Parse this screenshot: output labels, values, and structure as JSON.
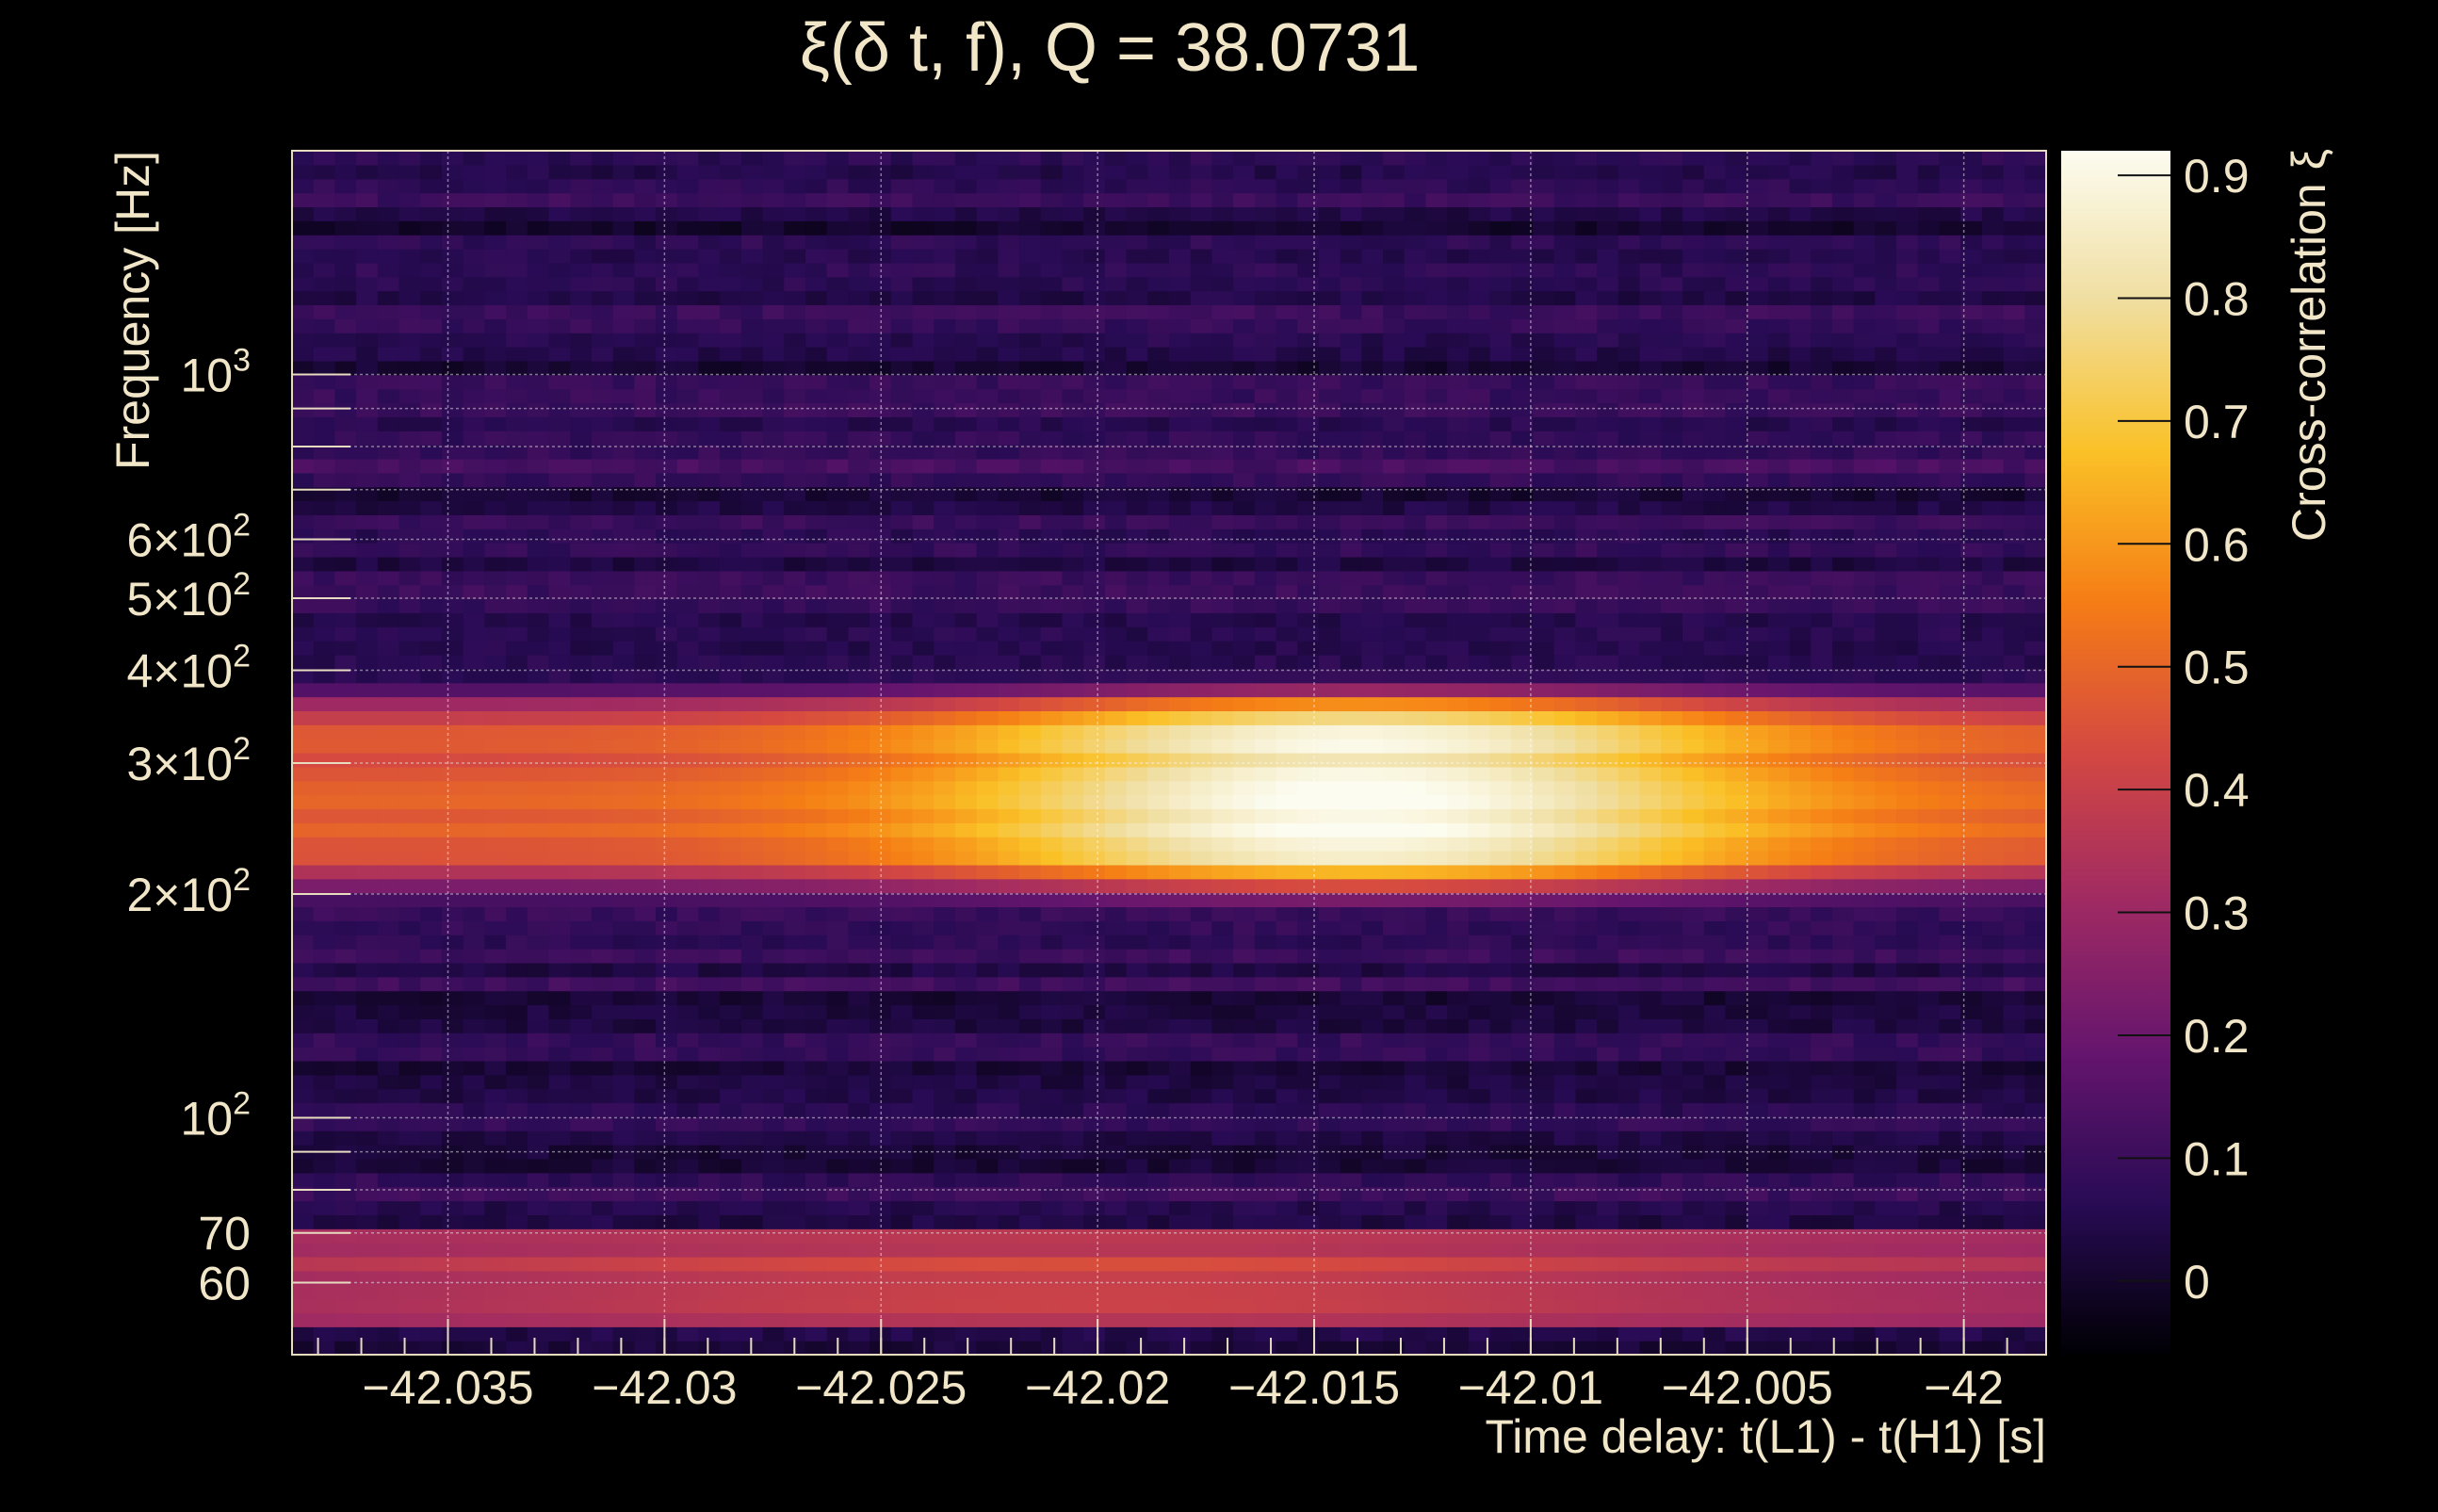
{
  "chart_data": {
    "type": "heatmap",
    "title": "ξ(δ t, f), Q = 38.0731",
    "xlabel": "Time delay: t(L1) - t(H1) [s]",
    "ylabel": "Frequency [Hz]",
    "colorbar_label": "Cross-correlation ξ",
    "y_scale": "log",
    "xlim": [
      -42.0386,
      -41.9981
    ],
    "ylim": [
      48,
      2000
    ],
    "x_ticks": [
      {
        "value": -42.035,
        "label": "−42.035"
      },
      {
        "value": -42.03,
        "label": "−42.03"
      },
      {
        "value": -42.025,
        "label": "−42.025"
      },
      {
        "value": -42.02,
        "label": "−42.02"
      },
      {
        "value": -42.015,
        "label": "−42.015"
      },
      {
        "value": -42.01,
        "label": "−42.01"
      },
      {
        "value": -42.005,
        "label": "−42.005"
      },
      {
        "value": -42.0,
        "label": "−42"
      }
    ],
    "y_ticks": [
      {
        "value": 60,
        "mantissa": "60",
        "exponent": ""
      },
      {
        "value": 70,
        "mantissa": "70",
        "exponent": ""
      },
      {
        "value": 100,
        "mantissa": "10",
        "exponent": "2"
      },
      {
        "value": 200,
        "mantissa": "2×10",
        "exponent": "2"
      },
      {
        "value": 300,
        "mantissa": "3×10",
        "exponent": "2"
      },
      {
        "value": 400,
        "mantissa": "4×10",
        "exponent": "2"
      },
      {
        "value": 500,
        "mantissa": "5×10",
        "exponent": "2"
      },
      {
        "value": 600,
        "mantissa": "6×10",
        "exponent": "2"
      },
      {
        "value": 1000,
        "mantissa": "10",
        "exponent": "3"
      }
    ],
    "y_gridlines": [
      60,
      70,
      80,
      90,
      100,
      200,
      300,
      400,
      500,
      600,
      700,
      800,
      900,
      1000
    ],
    "colorbar_range": [
      -0.06,
      0.92
    ],
    "colorbar_ticks": [
      {
        "value": 0,
        "label": "0"
      },
      {
        "value": 0.1,
        "label": "0.1"
      },
      {
        "value": 0.2,
        "label": "0.2"
      },
      {
        "value": 0.3,
        "label": "0.3"
      },
      {
        "value": 0.4,
        "label": "0.4"
      },
      {
        "value": 0.5,
        "label": "0.5"
      },
      {
        "value": 0.6,
        "label": "0.6"
      },
      {
        "value": 0.7,
        "label": "0.7"
      },
      {
        "value": 0.8,
        "label": "0.8"
      },
      {
        "value": 0.9,
        "label": "0.9"
      }
    ],
    "colormap": [
      "#000004",
      "#280b54",
      "#65156e",
      "#9f2a63",
      "#d44842",
      "#f57d15",
      "#fac127",
      "#f0dea0",
      "#fcfcf0"
    ],
    "grid": true,
    "features": [
      {
        "f_low": 190,
        "f_high": 395,
        "x_start": -42.0386,
        "x_end": -41.9981,
        "peak": 0.92,
        "peak_x": -42.014,
        "description_values": "main correlation band, maximum near 210–290 Hz"
      },
      {
        "f_low": 52,
        "f_high": 70,
        "x_start": -42.0386,
        "x_end": -41.9981,
        "peak": 0.42,
        "peak_x": -42.02,
        "description_values": "low-frequency band near 55–66 Hz"
      }
    ]
  }
}
